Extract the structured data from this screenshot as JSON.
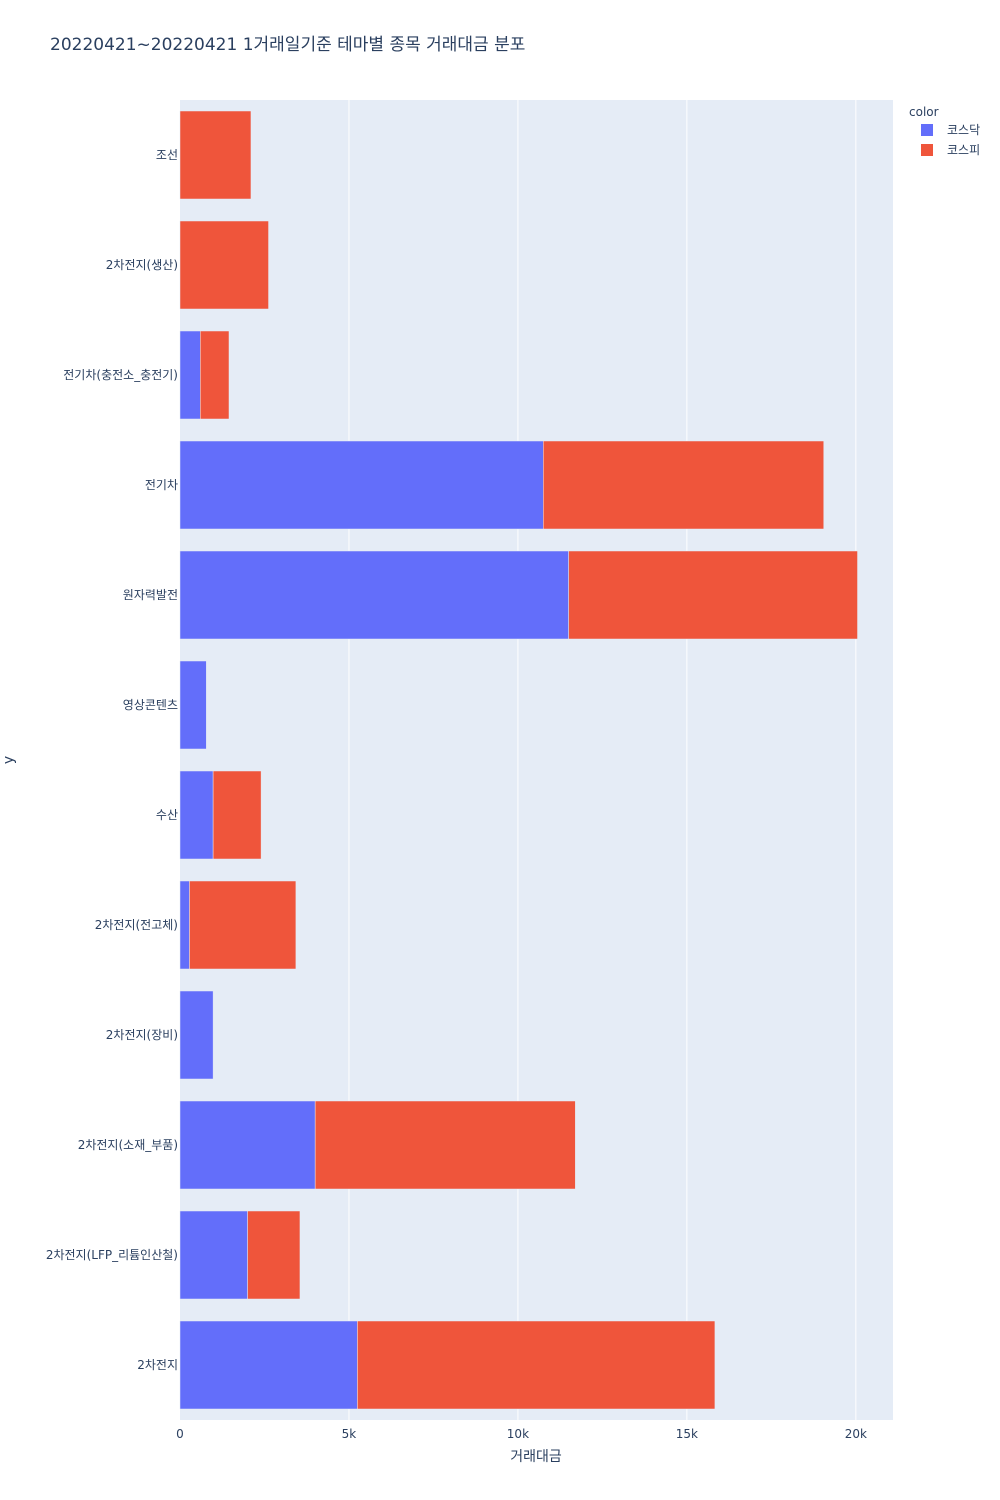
{
  "chart_data": {
    "type": "bar",
    "orientation": "horizontal",
    "barmode": "stack",
    "title": "20220421~20220421 1거래일기준 테마별 종목 거래대금 분포",
    "xlabel": "거래대금",
    "ylabel": "y",
    "xlim": [
      0,
      21100
    ],
    "x_ticks": [
      {
        "value": 0,
        "label": "0"
      },
      {
        "value": 5000,
        "label": "5k"
      },
      {
        "value": 10000,
        "label": "10k"
      },
      {
        "value": 15000,
        "label": "15k"
      },
      {
        "value": 20000,
        "label": "20k"
      }
    ],
    "categories": [
      "조선",
      "2차전지(생산)",
      "전기차(충전소_충전기)",
      "전기차",
      "원자력발전",
      "영상콘텐츠",
      "수산",
      "2차전지(전고체)",
      "2차전지(장비)",
      "2차전지(소재_부품)",
      "2차전지(LFP_리튬인산철)",
      "2차전지"
    ],
    "series": [
      {
        "name": "코스닥",
        "color": "#636efa",
        "values": [
          0,
          0,
          600,
          10750,
          11500,
          780,
          980,
          280,
          980,
          4000,
          2000,
          5250
        ]
      },
      {
        "name": "코스피",
        "color": "#ef553b",
        "values": [
          2100,
          2620,
          850,
          8300,
          8550,
          0,
          1420,
          3150,
          0,
          7700,
          1550,
          10580
        ]
      }
    ],
    "legend": {
      "title": "color",
      "placement": "top-right"
    },
    "grid": true
  }
}
